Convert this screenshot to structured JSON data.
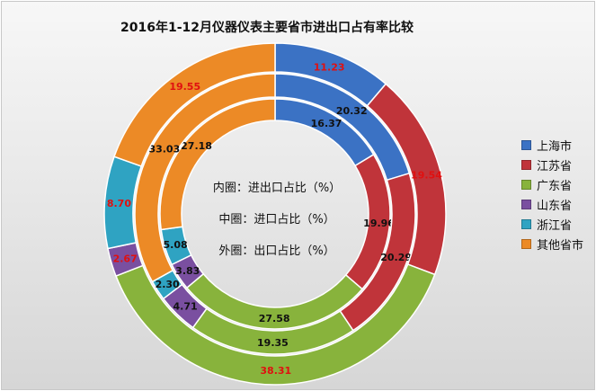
{
  "chart_data": {
    "type": "donut",
    "title": "2016年1-12月仪器仪表主要省市进出口占有率比较",
    "categories": [
      "上海市",
      "江苏省",
      "广东省",
      "山东省",
      "浙江省",
      "其他省市"
    ],
    "colors": [
      "#3b72c4",
      "#c0343a",
      "#88b33c",
      "#7a4fa0",
      "#2fa3c2",
      "#ec8a26"
    ],
    "rings": [
      {
        "label": "内圈：进出口占比（%）",
        "values": [
          16.37,
          19.96,
          27.58,
          3.83,
          5.08,
          27.18
        ]
      },
      {
        "label": "中圈：进口占比（%）",
        "values": [
          20.32,
          20.29,
          19.35,
          4.71,
          2.3,
          33.03
        ]
      },
      {
        "label": "外圈：出口占比（%）",
        "values": [
          11.23,
          19.54,
          38.31,
          2.67,
          8.7,
          19.55
        ]
      }
    ],
    "label_colors": {
      "inner": "#111111",
      "middle": "#111111",
      "outer": "#e01010"
    },
    "legend_position": "right"
  }
}
